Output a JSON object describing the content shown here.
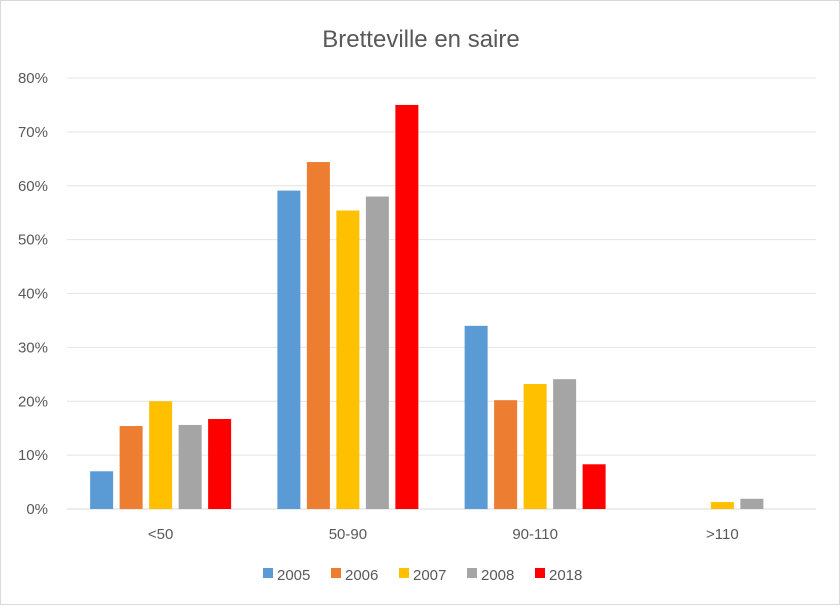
{
  "chart_data": {
    "type": "bar",
    "title": "Bretteville en saire",
    "xlabel": "",
    "ylabel": "",
    "ylim": [
      0,
      80
    ],
    "yticks": [
      "0%",
      "10%",
      "20%",
      "30%",
      "40%",
      "50%",
      "60%",
      "70%",
      "80%"
    ],
    "grid": true,
    "legend_position": "bottom",
    "categories": [
      "<50",
      "50-90",
      "90-110",
      ">110"
    ],
    "series": [
      {
        "name": "2005",
        "color": "#5b9bd5",
        "values": [
          7.0,
          59.1,
          34.0,
          0
        ]
      },
      {
        "name": "2006",
        "color": "#ed7d31",
        "values": [
          15.4,
          64.4,
          20.2,
          0
        ]
      },
      {
        "name": "2007",
        "color": "#ffc000",
        "values": [
          20.0,
          55.4,
          23.2,
          1.3
        ]
      },
      {
        "name": "2008",
        "color": "#a5a5a5",
        "values": [
          15.6,
          58.0,
          24.1,
          1.9
        ]
      },
      {
        "name": "2018",
        "color": "#ff0000",
        "values": [
          16.7,
          75.0,
          8.3,
          0
        ]
      }
    ]
  }
}
